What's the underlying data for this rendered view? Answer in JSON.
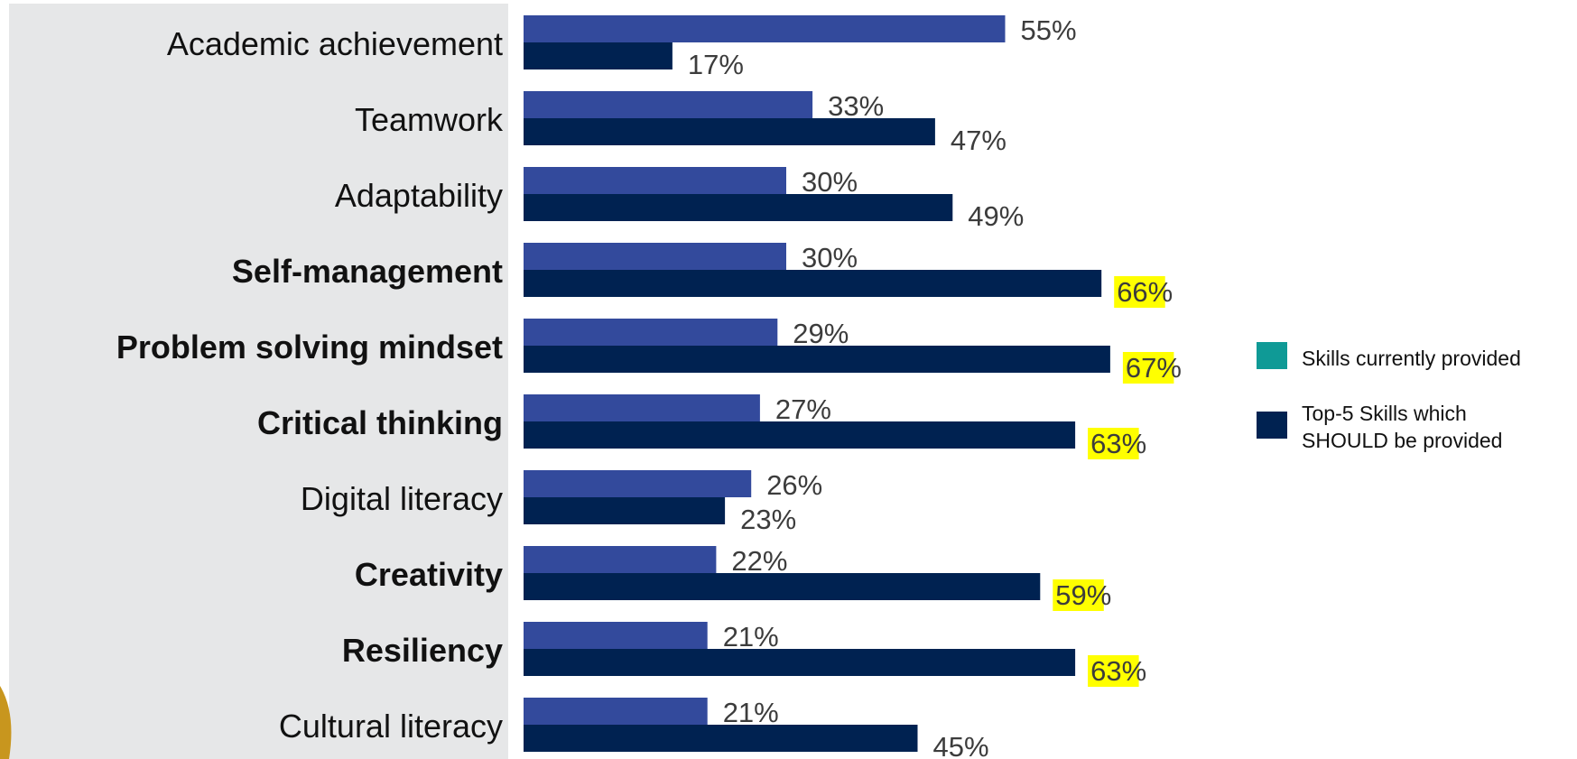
{
  "chart_data": {
    "type": "bar",
    "orientation": "horizontal",
    "categories": [
      "Academic achievement",
      "Teamwork",
      "Adaptability",
      "Self-management",
      "Problem solving mindset",
      "Critical thinking",
      "Digital literacy",
      "Creativity",
      "Resiliency",
      "Cultural literacy"
    ],
    "bold_categories": [
      "Self-management",
      "Problem solving mindset",
      "Critical thinking",
      "Creativity",
      "Resiliency"
    ],
    "series": [
      {
        "name": "Skills currently provided",
        "color": "#334a9c",
        "legend_color": "#0f9a96",
        "values": [
          55,
          33,
          30,
          30,
          29,
          27,
          26,
          22,
          21,
          21
        ],
        "labels": [
          "55%",
          "33%",
          "30%",
          "30%",
          "29%",
          "27%",
          "26%",
          "22%",
          "21%",
          "21%"
        ],
        "highlighted": []
      },
      {
        "name": "Top-5 Skills which SHOULD be provided",
        "name_lines": [
          "Top-5 Skills which",
          "SHOULD be provided"
        ],
        "color": "#002251",
        "legend_color": "#002251",
        "values": [
          17,
          47,
          49,
          66,
          67,
          63,
          23,
          59,
          63,
          45
        ],
        "labels": [
          "17%",
          "47%",
          "49%",
          "66%",
          "67%",
          "63%",
          "23%",
          "59%",
          "63%",
          "45%"
        ],
        "highlighted": [
          3,
          4,
          5,
          7,
          8
        ]
      }
    ],
    "xlim": [
      0,
      100
    ],
    "highlight_color": "#ffff00",
    "label_panel_color": "#e6e7e8",
    "legend_position": "right"
  }
}
